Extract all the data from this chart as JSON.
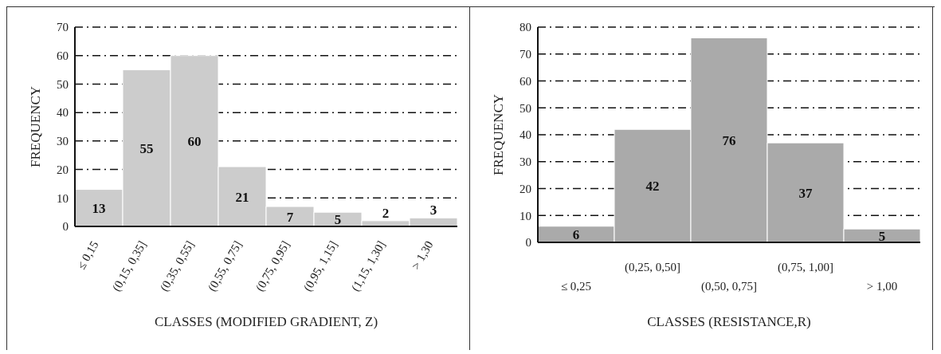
{
  "chart_data": [
    {
      "type": "bar",
      "xlabel": "CLASSES (MODIFIED GRADIENT, Z)",
      "ylabel": "FREQUENCY",
      "categories": [
        "≤ 0,15",
        "(0,15, 0,35]",
        "(0,35, 0,55]",
        "(0,55, 0,75]",
        "(0,75, 0,95]",
        "(0,95, 1,15]",
        "(1,15, 1,30]",
        "> 1,30"
      ],
      "values": [
        13,
        55,
        60,
        21,
        7,
        5,
        2,
        3
      ],
      "color": "#cccccc",
      "ylim": [
        0,
        70
      ],
      "yticks": [
        0,
        10,
        20,
        30,
        40,
        50,
        60,
        70
      ],
      "grid": "y",
      "data_labels": true
    },
    {
      "type": "bar",
      "xlabel": "CLASSES (RESISTANCE,R)",
      "ylabel": "FREQUENCY",
      "categories": [
        "≤ 0,25",
        "(0,25, 0,50]",
        "(0,50, 0,75]",
        "(0,75, 1,00]",
        "> 1,00"
      ],
      "values": [
        6,
        42,
        76,
        37,
        5
      ],
      "color": "#aaaaaa",
      "ylim": [
        0,
        80
      ],
      "yticks": [
        0,
        10,
        20,
        30,
        40,
        50,
        60,
        70,
        80
      ],
      "grid": "y",
      "data_labels": true
    }
  ]
}
